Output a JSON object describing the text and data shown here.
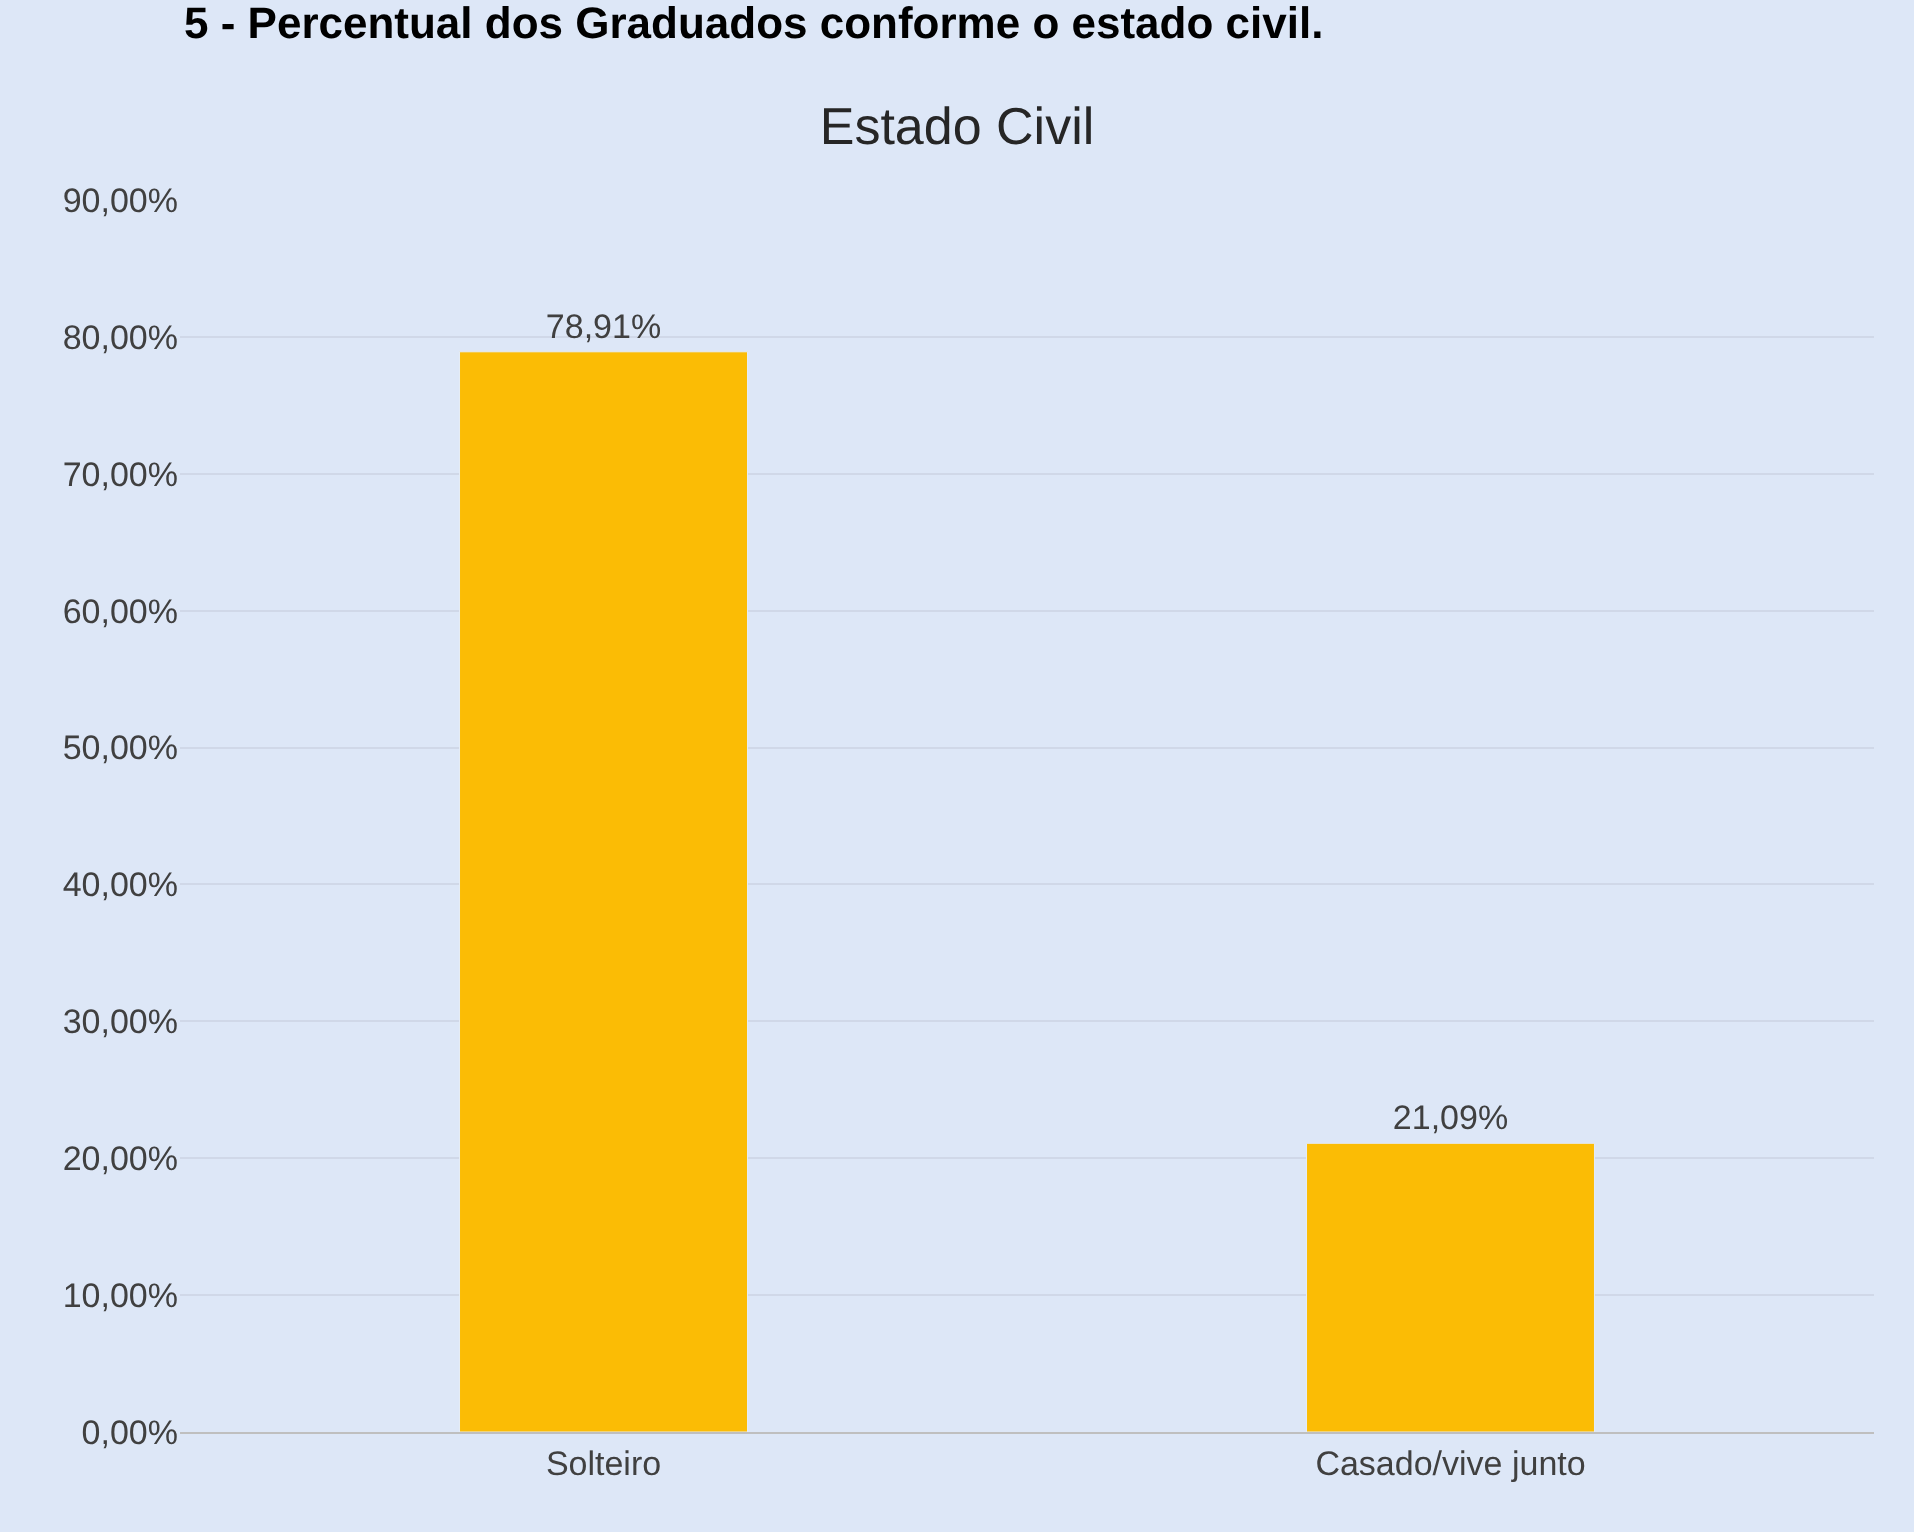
{
  "chart_data": {
    "type": "bar",
    "title": "Estado Civil",
    "annotations": [
      "5 - Percentual dos Graduados conforme o estado civil."
    ],
    "categories": [
      "Solteiro",
      "Casado/vive junto"
    ],
    "values": [
      78.91,
      21.09
    ],
    "color": "#fbbc05",
    "value_labels": [
      "78,91%",
      "21,09%"
    ],
    "ylim": [
      0,
      90
    ],
    "yticks": [
      {
        "value": 0,
        "label": "0,00%"
      },
      {
        "value": 10,
        "label": "10,00%"
      },
      {
        "value": 20,
        "label": "20,00%"
      },
      {
        "value": 30,
        "label": "30,00%"
      },
      {
        "value": 40,
        "label": "40,00%"
      },
      {
        "value": 50,
        "label": "50,00%"
      },
      {
        "value": 60,
        "label": "60,00%"
      },
      {
        "value": 70,
        "label": "70,00%"
      },
      {
        "value": 80,
        "label": "80,00%"
      },
      {
        "value": 90,
        "label": "90,00%"
      }
    ],
    "grid": "y"
  }
}
